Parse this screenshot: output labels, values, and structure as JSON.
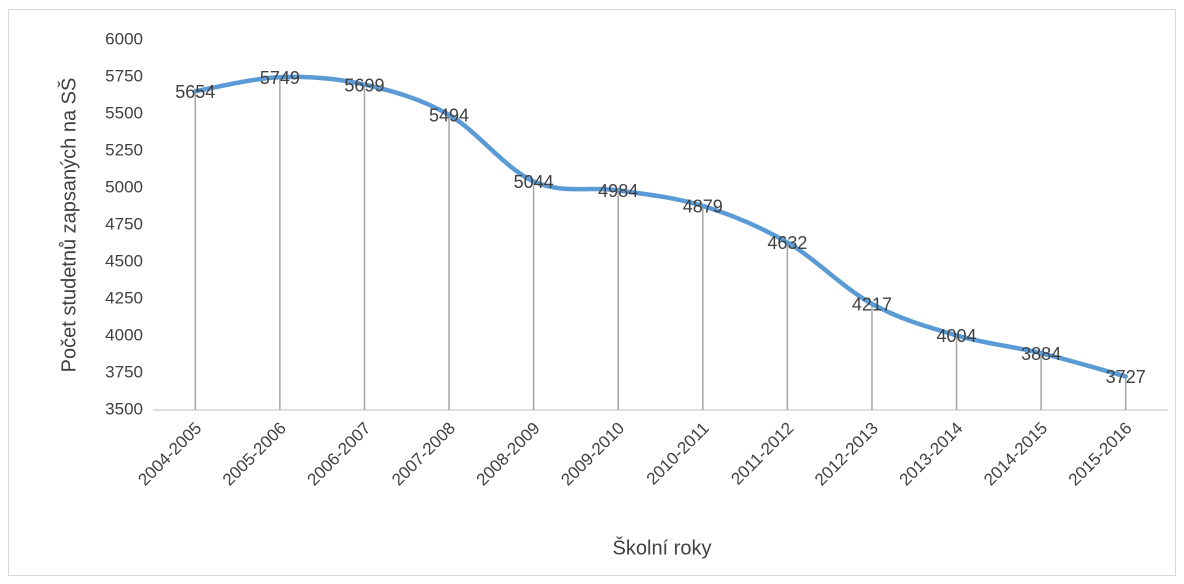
{
  "chart_data": {
    "type": "line",
    "x_label": "Školní roky",
    "y_label": "Počet studetnů zapsaných na SŠ",
    "categories": [
      "2004-2005",
      "2005-2006",
      "2006-2007",
      "2007-2008",
      "2008-2009",
      "2009-2010",
      "2010-2011",
      "2011-2012",
      "2012-2013",
      "2013-2014",
      "2014-2015",
      "2015-2016"
    ],
    "series": [
      {
        "name": "Počet studetnů zapsaných na SŠ",
        "color": "#5b9bd5",
        "values": [
          5654,
          5749,
          5699,
          5494,
          5044,
          4984,
          4879,
          4632,
          4217,
          4004,
          3884,
          3727
        ]
      }
    ],
    "ylim": [
      3500,
      6000
    ],
    "yticks": [
      3500,
      3750,
      4000,
      4250,
      4500,
      4750,
      5000,
      5250,
      5500,
      5750,
      6000
    ],
    "drop_lines": true,
    "smooth": true,
    "grid": false
  }
}
